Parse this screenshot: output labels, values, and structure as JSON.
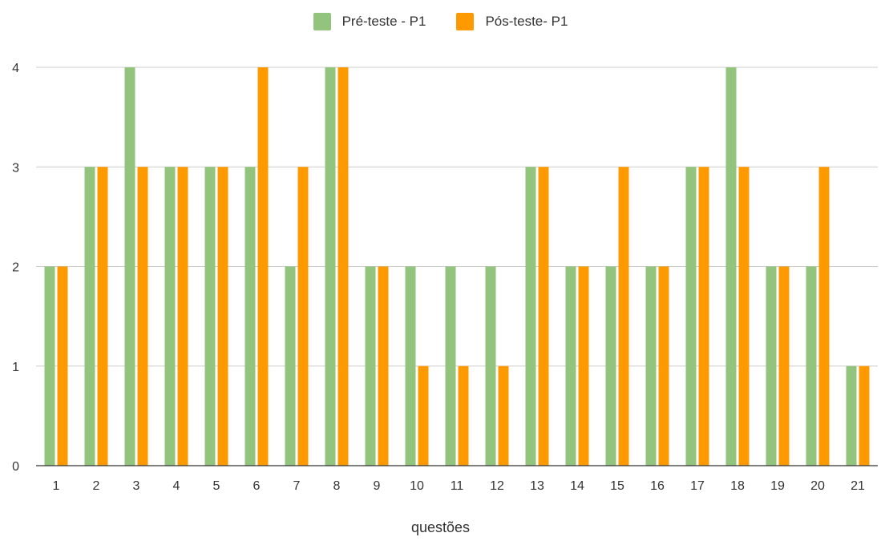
{
  "chart_data": {
    "type": "bar",
    "title": "",
    "xlabel": "questões",
    "ylabel": "",
    "ylim": [
      0,
      4
    ],
    "yticks": [
      0,
      1,
      2,
      3,
      4
    ],
    "grid": true,
    "legend_position": "top-center",
    "categories": [
      "1",
      "2",
      "3",
      "4",
      "5",
      "6",
      "7",
      "8",
      "9",
      "10",
      "11",
      "12",
      "13",
      "14",
      "15",
      "16",
      "17",
      "18",
      "19",
      "20",
      "21"
    ],
    "series": [
      {
        "name": "Pré-teste - P1",
        "color": "#93c47d",
        "values": [
          2,
          3,
          4,
          3,
          3,
          3,
          2,
          4,
          2,
          2,
          2,
          2,
          3,
          2,
          2,
          2,
          3,
          4,
          2,
          2,
          1
        ]
      },
      {
        "name": "Pós-teste- P1",
        "color": "#ff9900",
        "values": [
          2,
          3,
          3,
          3,
          3,
          4,
          3,
          4,
          2,
          1,
          1,
          1,
          3,
          2,
          3,
          2,
          3,
          3,
          2,
          3,
          1
        ]
      }
    ]
  }
}
